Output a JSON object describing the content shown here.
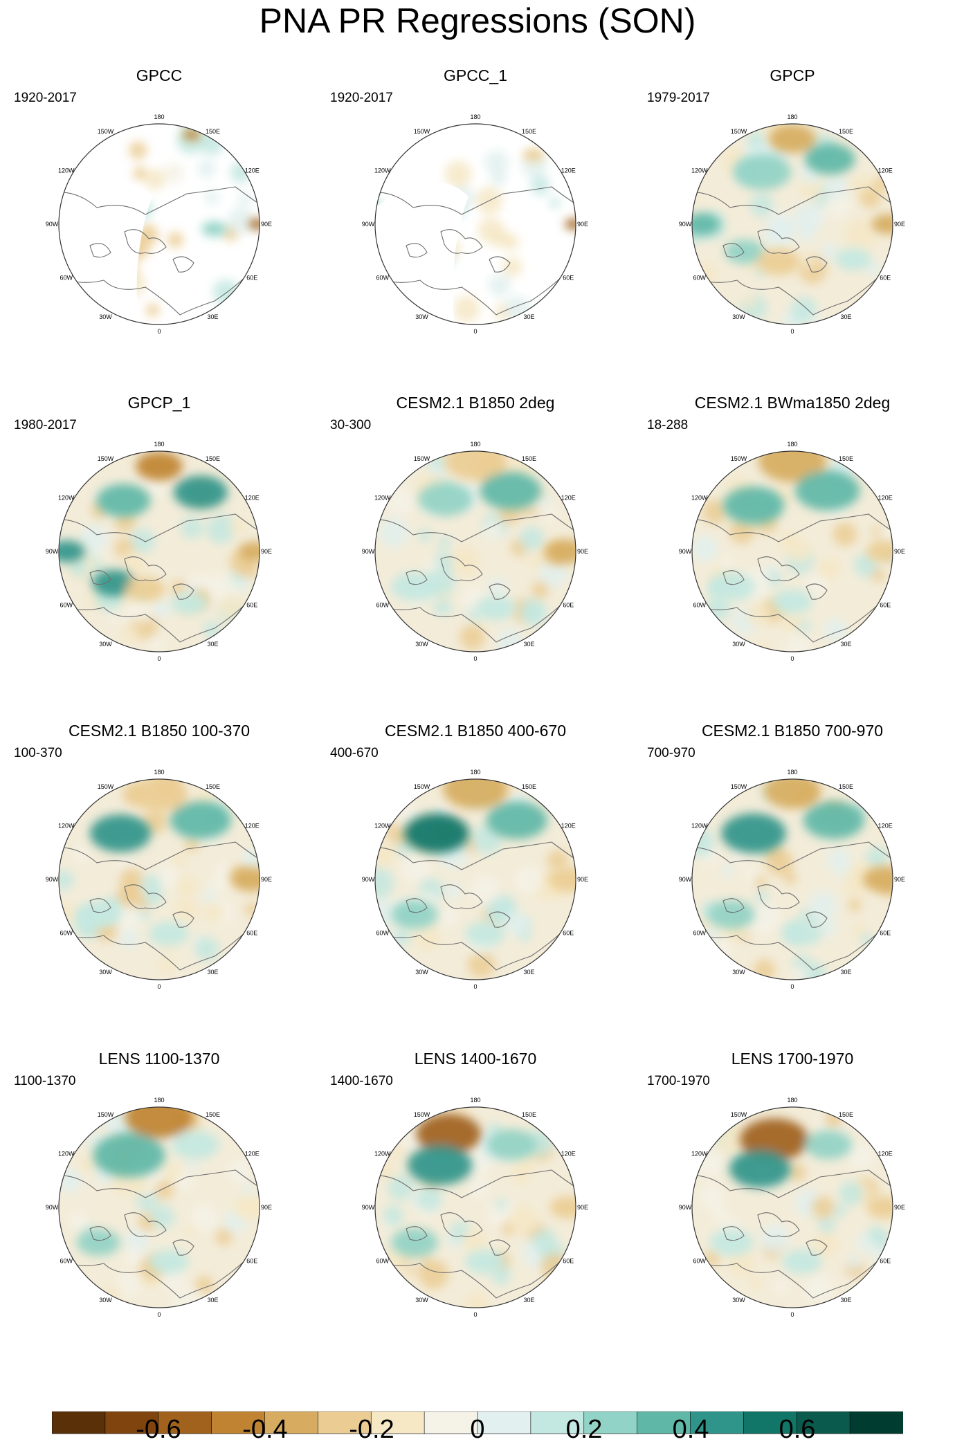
{
  "title": "PNA PR Regressions (SON)",
  "longitude_labels": [
    "180",
    "150E",
    "120E",
    "90E",
    "60E",
    "30E",
    "0",
    "30W",
    "60W",
    "90W",
    "120W",
    "150W"
  ],
  "panels": [
    {
      "title": "GPCC",
      "period": "1920-2017",
      "ocean_masked": true
    },
    {
      "title": "GPCC_1",
      "period": "1920-2017",
      "ocean_masked": true
    },
    {
      "title": "GPCP",
      "period": "1979-2017",
      "ocean_masked": false
    },
    {
      "title": "GPCP_1",
      "period": "1980-2017",
      "ocean_masked": false
    },
    {
      "title": "CESM2.1 B1850 2deg",
      "period": "30-300",
      "ocean_masked": false
    },
    {
      "title": "CESM2.1 BWma1850 2deg",
      "period": "18-288",
      "ocean_masked": false
    },
    {
      "title": "CESM2.1 B1850 100-370",
      "period": "100-370",
      "ocean_masked": false
    },
    {
      "title": "CESM2.1 B1850 400-670",
      "period": "400-670",
      "ocean_masked": false
    },
    {
      "title": "CESM2.1 B1850 700-970",
      "period": "700-970",
      "ocean_masked": false
    },
    {
      "title": "LENS 1100-1370",
      "period": "1100-1370",
      "ocean_masked": false
    },
    {
      "title": "LENS 1400-1670",
      "period": "1400-1670",
      "ocean_masked": false
    },
    {
      "title": "LENS 1700-1970",
      "period": "1700-1970",
      "ocean_masked": false
    }
  ],
  "colorbar": {
    "colors": [
      "#5a3009",
      "#80450f",
      "#a0621c",
      "#c08332",
      "#d7ac60",
      "#ebcd94",
      "#f6e8c5",
      "#f5f2e8",
      "#e2f0ef",
      "#c3e8e1",
      "#91d3c6",
      "#5fb7a7",
      "#2f958a",
      "#117567",
      "#0a5a4d",
      "#003c30"
    ],
    "labels": [
      "-0.6",
      "-0.4",
      "-0.2",
      "0",
      "0.2",
      "0.4",
      "0.6"
    ]
  }
}
